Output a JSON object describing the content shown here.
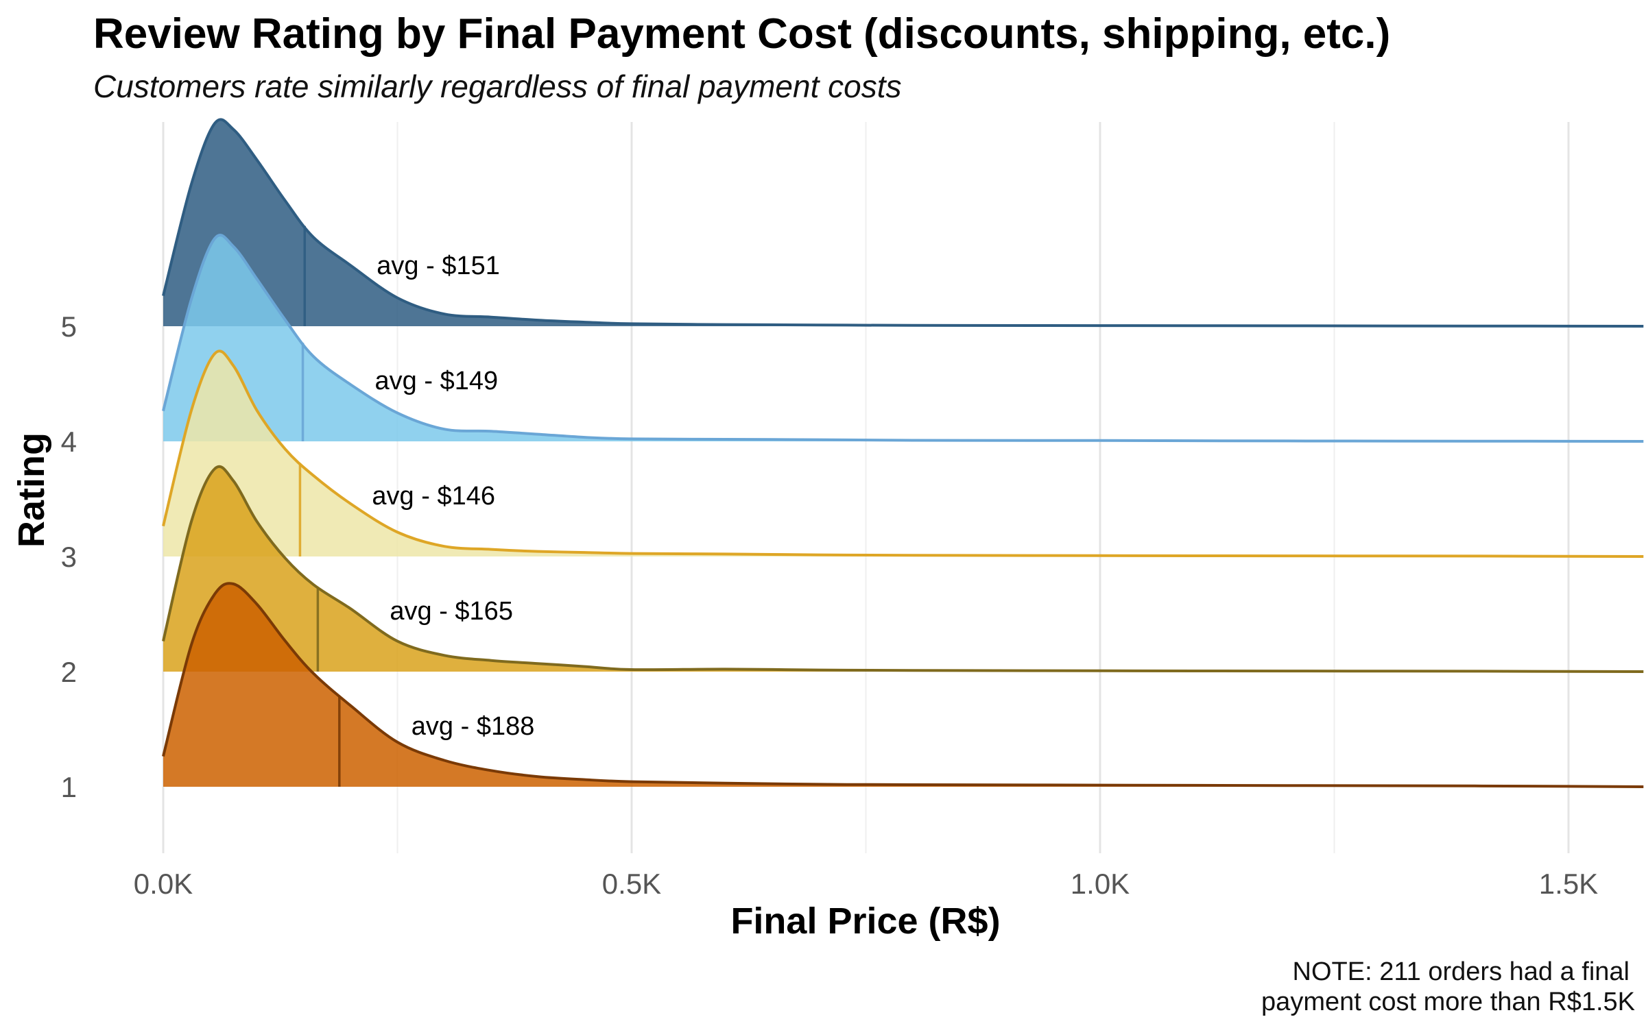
{
  "chart_data": {
    "type": "ridgeline",
    "title": "Review Rating by Final Payment Cost (discounts, shipping, etc.)",
    "subtitle": "Customers rate similarly regardless of final payment costs",
    "xlabel": "Final Price (R$)",
    "ylabel": "Rating",
    "xlim": [
      0,
      1580
    ],
    "x_ticks": [
      {
        "value": 0,
        "label": "0.0K"
      },
      {
        "value": 500,
        "label": "0.5K"
      },
      {
        "value": 1000,
        "label": "1.0K"
      },
      {
        "value": 1500,
        "label": "1.5K"
      }
    ],
    "grid": true,
    "legend": "none",
    "note": [
      "NOTE: 211 orders had a final",
      "payment cost more than R$1.5K"
    ],
    "density_x": [
      0,
      30,
      55,
      75,
      100,
      130,
      160,
      200,
      250,
      300,
      350,
      400,
      450,
      500,
      600,
      700,
      800,
      1000,
      1200,
      1400,
      1580
    ],
    "series": [
      {
        "rating": 5,
        "avg": 151,
        "label": "avg - $151",
        "fill": "#2f5d82",
        "line": "#2f5d82",
        "density": [
          0.15,
          0.7,
          1.0,
          0.97,
          0.82,
          0.62,
          0.44,
          0.3,
          0.14,
          0.06,
          0.045,
          0.03,
          0.02,
          0.012,
          0.008,
          0.006,
          0.004,
          0.003,
          0.002,
          0.001,
          0
        ]
      },
      {
        "rating": 4,
        "avg": 149,
        "label": "avg - $149",
        "fill": "#7cc9eb",
        "line": "#6aa6d6",
        "density": [
          0.15,
          0.7,
          1.0,
          0.96,
          0.8,
          0.6,
          0.42,
          0.28,
          0.14,
          0.06,
          0.05,
          0.035,
          0.02,
          0.012,
          0.01,
          0.008,
          0.005,
          0.004,
          0.002,
          0.001,
          0
        ]
      },
      {
        "rating": 3,
        "avg": 146,
        "label": "avg - $146",
        "fill": "#ede6a8",
        "line": "#dea626",
        "density": [
          0.15,
          0.72,
          1.0,
          0.94,
          0.72,
          0.53,
          0.4,
          0.26,
          0.12,
          0.05,
          0.035,
          0.025,
          0.02,
          0.015,
          0.012,
          0.008,
          0.006,
          0.004,
          0.003,
          0.002,
          0
        ]
      },
      {
        "rating": 2,
        "avg": 165,
        "label": "avg - $165",
        "fill": "#d9a21c",
        "line": "#7f6a1e",
        "density": [
          0.15,
          0.74,
          1.0,
          0.94,
          0.74,
          0.56,
          0.43,
          0.31,
          0.15,
          0.08,
          0.055,
          0.04,
          0.025,
          0.01,
          0.012,
          0.008,
          0.006,
          0.004,
          0.003,
          0.002,
          0
        ]
      },
      {
        "rating": 1,
        "avg": 188,
        "label": "avg - $188",
        "fill": "#cc6200",
        "line": "#7a3a06",
        "density": [
          0.15,
          0.7,
          0.95,
          1.0,
          0.9,
          0.72,
          0.56,
          0.4,
          0.22,
          0.13,
          0.08,
          0.05,
          0.035,
          0.025,
          0.018,
          0.012,
          0.01,
          0.008,
          0.006,
          0.004,
          0
        ]
      }
    ]
  }
}
